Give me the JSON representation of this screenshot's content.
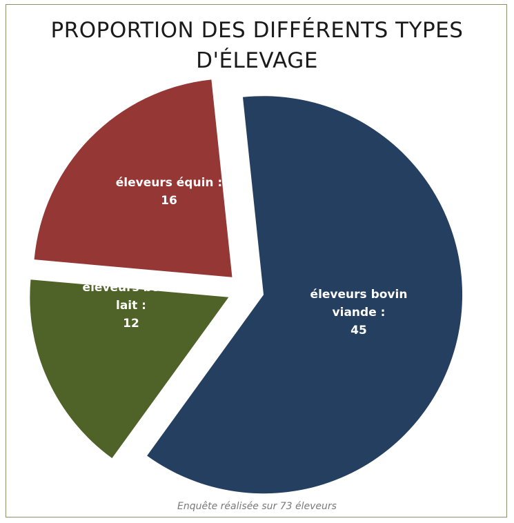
{
  "chart_data": {
    "type": "pie",
    "title_lines": [
      "PROPORTION DES DIFFÉRENTS TYPES",
      "D'ÉLEVAGE"
    ],
    "slices": [
      {
        "name": "éleveurs bovin viande",
        "value": 45,
        "color": "#243f60",
        "label_lines": [
          "éleveurs bovin",
          "viande :",
          "45"
        ]
      },
      {
        "name": "éleveurs bovin lait",
        "value": 12,
        "color": "#4f6228",
        "label_lines": [
          "éleveurs bovin",
          "lait :",
          "12"
        ]
      },
      {
        "name": "éleveurs équin",
        "value": 16,
        "color": "#953735",
        "label_lines": [
          "éleveurs équin :",
          "16"
        ]
      }
    ],
    "exploded": true,
    "legend": "none"
  },
  "footnote": "Enquête réalisée sur 73 éleveurs"
}
